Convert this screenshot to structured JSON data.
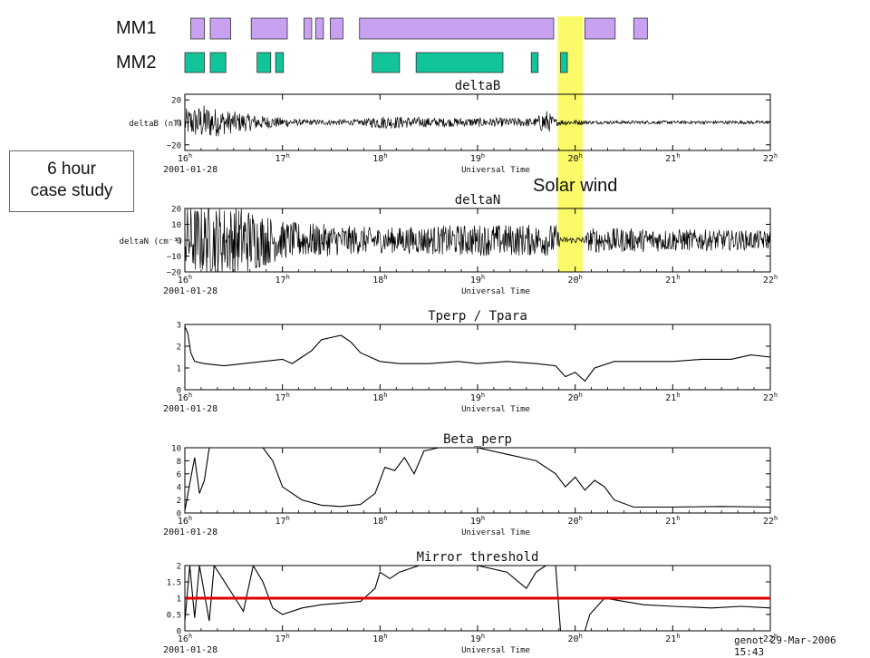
{
  "mm_labels": [
    "MM1",
    "MM2"
  ],
  "callout": {
    "line1": "6 hour",
    "line2": "case study"
  },
  "solar_wind_label": "Solar wind",
  "footer": "genot 29-Mar-2006 15:43",
  "colors": {
    "mm1": "#c8a2f0",
    "mm2": "#12c49a",
    "highlight": "#fbfb6a",
    "threshold_line": "#e00000"
  },
  "chart_data": {
    "type": "line",
    "x_axis": {
      "label": "Universal Time",
      "date": "2001-01-28",
      "ticks": [
        16,
        17,
        18,
        19,
        20,
        21,
        22
      ],
      "tick_suffix": "h",
      "range": [
        16,
        22
      ]
    },
    "mm1_intervals": [
      [
        16.06,
        16.2
      ],
      [
        16.26,
        16.47
      ],
      [
        16.68,
        17.05
      ],
      [
        17.22,
        17.3
      ],
      [
        17.34,
        17.42
      ],
      [
        17.49,
        17.62
      ],
      [
        17.79,
        19.78
      ],
      [
        20.1,
        20.41
      ],
      [
        20.6,
        20.74
      ]
    ],
    "mm2_intervals": [
      [
        16.0,
        16.2
      ],
      [
        16.26,
        16.42
      ],
      [
        16.74,
        16.88
      ],
      [
        16.93,
        17.01
      ],
      [
        17.92,
        18.2
      ],
      [
        18.37,
        19.26
      ],
      [
        19.55,
        19.62
      ],
      [
        19.85,
        19.92
      ]
    ],
    "solar_wind_interval": [
      19.82,
      20.08
    ],
    "panels": [
      {
        "title": "deltaB",
        "ylabel": "deltaB (nT)",
        "ylim": [
          -25,
          25
        ],
        "yticks": [
          20,
          0,
          -20
        ],
        "ytick_labels": [
          "20",
          "0",
          "−20"
        ],
        "kind": "noise",
        "amplitude_profile": [
          [
            16.0,
            12
          ],
          [
            16.2,
            16
          ],
          [
            16.4,
            11
          ],
          [
            16.8,
            6
          ],
          [
            17.2,
            2.5
          ],
          [
            17.8,
            2.5
          ],
          [
            18.0,
            6
          ],
          [
            18.6,
            4
          ],
          [
            19.2,
            4
          ],
          [
            19.6,
            4
          ],
          [
            19.7,
            12
          ],
          [
            19.8,
            3
          ],
          [
            20.2,
            1.5
          ],
          [
            22.0,
            1.5
          ]
        ]
      },
      {
        "title": "deltaN",
        "ylabel": "deltaN (cm⁻³)",
        "ylim": [
          -20,
          20
        ],
        "yticks": [
          20,
          10,
          0,
          -10,
          -20
        ],
        "ytick_labels": [
          "20",
          "10",
          "0",
          "−10",
          "−20"
        ],
        "kind": "noise",
        "amplitude_profile": [
          [
            16.0,
            22
          ],
          [
            16.6,
            22
          ],
          [
            17.0,
            12
          ],
          [
            18.0,
            8
          ],
          [
            19.0,
            10
          ],
          [
            19.8,
            10
          ],
          [
            19.85,
            2
          ],
          [
            20.1,
            2
          ],
          [
            20.15,
            8
          ],
          [
            22.0,
            6
          ]
        ]
      },
      {
        "title": "Tperp / Tpara",
        "ylabel": "",
        "ylim": [
          0,
          3
        ],
        "yticks": [
          0,
          1,
          2,
          3
        ],
        "ytick_labels": [
          "0",
          "1",
          "2",
          "3"
        ],
        "kind": "line",
        "points": [
          [
            16.0,
            2.9
          ],
          [
            16.03,
            2.6
          ],
          [
            16.06,
            1.7
          ],
          [
            16.1,
            1.3
          ],
          [
            16.2,
            1.2
          ],
          [
            16.4,
            1.1
          ],
          [
            16.6,
            1.2
          ],
          [
            16.8,
            1.3
          ],
          [
            17.0,
            1.4
          ],
          [
            17.1,
            1.2
          ],
          [
            17.2,
            1.5
          ],
          [
            17.3,
            1.8
          ],
          [
            17.4,
            2.3
          ],
          [
            17.5,
            2.4
          ],
          [
            17.6,
            2.5
          ],
          [
            17.7,
            2.2
          ],
          [
            17.8,
            1.7
          ],
          [
            18.0,
            1.3
          ],
          [
            18.2,
            1.2
          ],
          [
            18.5,
            1.2
          ],
          [
            18.8,
            1.3
          ],
          [
            19.0,
            1.2
          ],
          [
            19.3,
            1.3
          ],
          [
            19.6,
            1.2
          ],
          [
            19.8,
            1.1
          ],
          [
            19.9,
            0.6
          ],
          [
            20.0,
            0.8
          ],
          [
            20.1,
            0.4
          ],
          [
            20.2,
            1.0
          ],
          [
            20.4,
            1.3
          ],
          [
            20.6,
            1.3
          ],
          [
            21.0,
            1.3
          ],
          [
            21.3,
            1.4
          ],
          [
            21.6,
            1.4
          ],
          [
            21.8,
            1.6
          ],
          [
            22.0,
            1.5
          ]
        ]
      },
      {
        "title": "Beta_perp",
        "ylabel": "",
        "ylim": [
          0,
          10
        ],
        "yticks": [
          0,
          2,
          4,
          6,
          8,
          10
        ],
        "ytick_labels": [
          "0",
          "2",
          "4",
          "6",
          "8",
          "10"
        ],
        "kind": "line",
        "points": [
          [
            16.0,
            0.4
          ],
          [
            16.05,
            4.5
          ],
          [
            16.1,
            8.5
          ],
          [
            16.15,
            3.0
          ],
          [
            16.2,
            5.0
          ],
          [
            16.25,
            10
          ],
          [
            16.8,
            10
          ],
          [
            16.9,
            8.0
          ],
          [
            17.0,
            4.0
          ],
          [
            17.2,
            2.0
          ],
          [
            17.4,
            1.2
          ],
          [
            17.6,
            1.0
          ],
          [
            17.8,
            1.3
          ],
          [
            17.95,
            3.0
          ],
          [
            18.05,
            7.0
          ],
          [
            18.15,
            6.5
          ],
          [
            18.25,
            8.5
          ],
          [
            18.35,
            6.0
          ],
          [
            18.45,
            9.5
          ],
          [
            18.6,
            10
          ],
          [
            19.0,
            10
          ],
          [
            19.3,
            9.0
          ],
          [
            19.6,
            8.0
          ],
          [
            19.8,
            6.0
          ],
          [
            19.9,
            4.0
          ],
          [
            20.0,
            5.5
          ],
          [
            20.1,
            3.5
          ],
          [
            20.2,
            5.0
          ],
          [
            20.3,
            4.0
          ],
          [
            20.4,
            2.0
          ],
          [
            20.6,
            0.9
          ],
          [
            21.0,
            0.9
          ],
          [
            21.5,
            1.0
          ],
          [
            22.0,
            0.9
          ]
        ]
      },
      {
        "title": "Mirror threshold",
        "ylabel": "",
        "ylim": [
          0,
          2
        ],
        "yticks": [
          0,
          0.5,
          1,
          1.5,
          2
        ],
        "ytick_labels": [
          "0",
          "0.5",
          "1",
          "1.5",
          "2"
        ],
        "kind": "line",
        "threshold": 1,
        "points": [
          [
            16.0,
            0.3
          ],
          [
            16.05,
            2
          ],
          [
            16.1,
            0.4
          ],
          [
            16.15,
            2
          ],
          [
            16.25,
            0.3
          ],
          [
            16.3,
            2
          ],
          [
            16.6,
            0.6
          ],
          [
            16.7,
            2
          ],
          [
            16.8,
            1.5
          ],
          [
            16.9,
            0.7
          ],
          [
            17.0,
            0.5
          ],
          [
            17.2,
            0.7
          ],
          [
            17.4,
            0.8
          ],
          [
            17.6,
            0.85
          ],
          [
            17.8,
            0.9
          ],
          [
            17.95,
            1.3
          ],
          [
            18.0,
            1.8
          ],
          [
            18.1,
            1.6
          ],
          [
            18.2,
            1.8
          ],
          [
            18.4,
            2
          ],
          [
            19.0,
            2
          ],
          [
            19.3,
            1.8
          ],
          [
            19.5,
            1.3
          ],
          [
            19.6,
            1.8
          ],
          [
            19.7,
            2
          ],
          [
            19.8,
            2
          ],
          [
            19.85,
            0
          ],
          [
            20.0,
            0
          ],
          [
            20.1,
            0
          ],
          [
            20.15,
            0.5
          ],
          [
            20.3,
            1.0
          ],
          [
            20.5,
            0.9
          ],
          [
            20.7,
            0.8
          ],
          [
            21.0,
            0.75
          ],
          [
            21.4,
            0.7
          ],
          [
            21.7,
            0.75
          ],
          [
            22.0,
            0.7
          ]
        ]
      }
    ]
  }
}
